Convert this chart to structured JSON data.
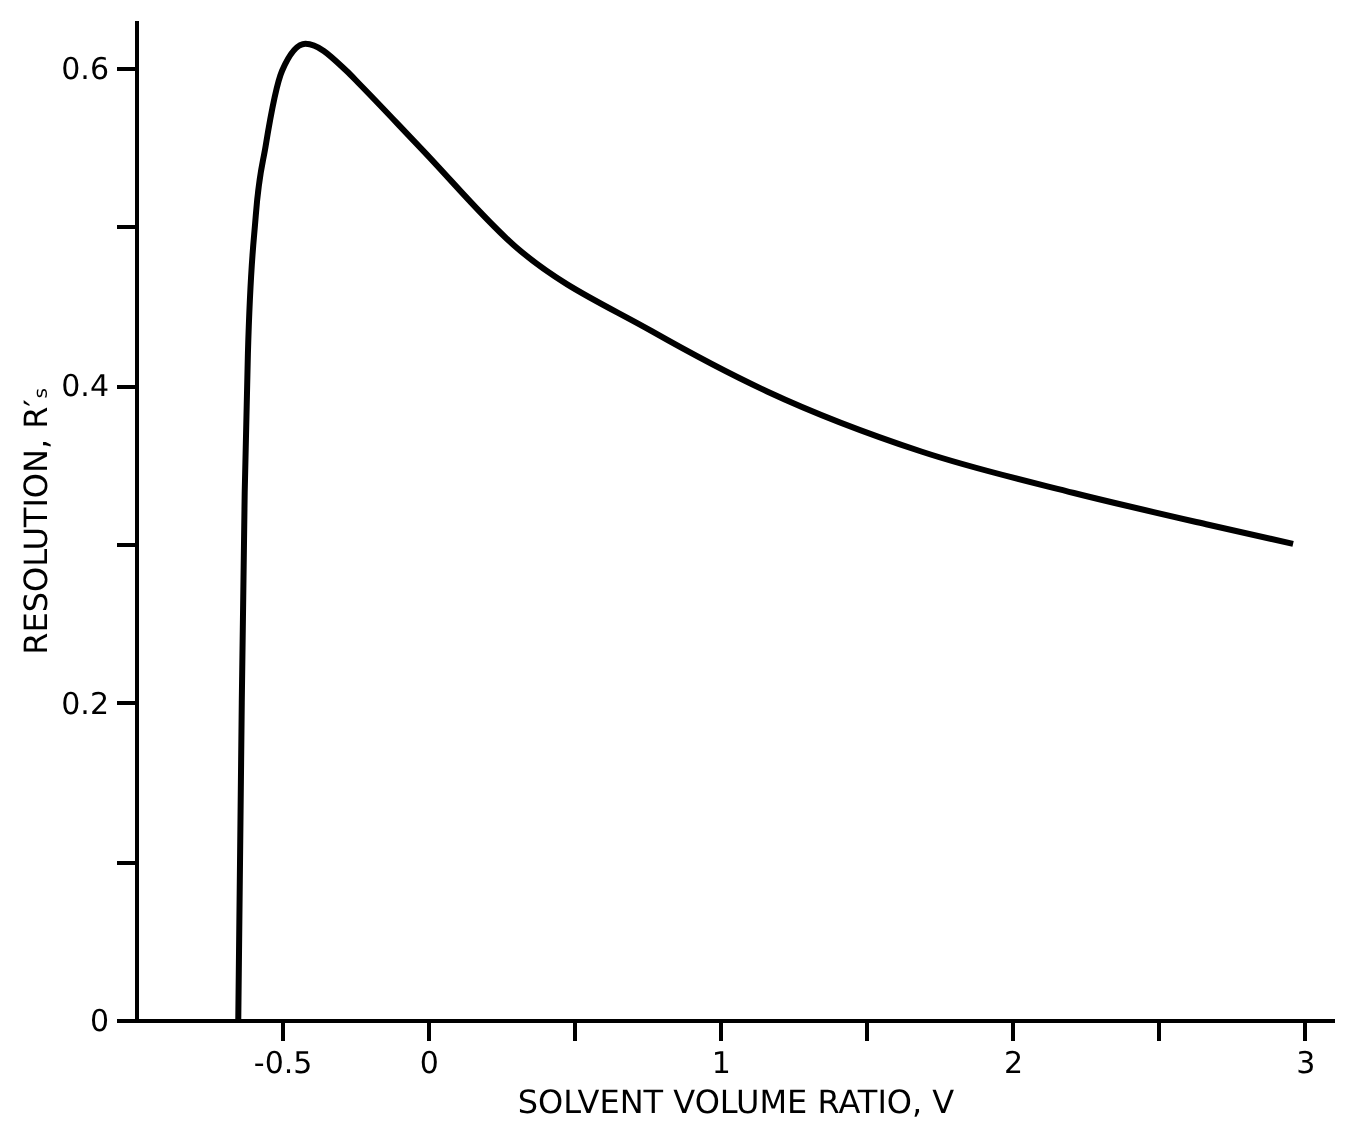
{
  "chart_data": {
    "type": "line",
    "xlabel": "SOLVENT  VOLUME  RATIO,  V",
    "ylabel": "RESOLUTION,  R′ₛ",
    "xlim": [
      -1,
      3.1
    ],
    "ylim": [
      0,
      0.63
    ],
    "xticks": [
      -0.5,
      0,
      {
        "value": 0.5,
        "label": null
      },
      1,
      {
        "value": 1.5,
        "label": null
      },
      2,
      {
        "value": 2.5,
        "label": null
      },
      3
    ],
    "yticks": [
      0,
      {
        "value": 0.1,
        "label": null
      },
      0.2,
      {
        "value": 0.3,
        "label": null
      },
      0.4,
      {
        "value": 0.5,
        "label": null
      },
      0.6
    ],
    "grid": false,
    "marker": "none",
    "line_style": "solid",
    "series": [
      {
        "color": "#000000",
        "x": [
          -0.65,
          -0.638,
          -0.628,
          -0.617,
          -0.59,
          -0.556,
          -0.5,
          -0.42,
          -0.28,
          -0.237,
          -0.024,
          0.3,
          0.765,
          1.16,
          1.69,
          2.21,
          2.67,
          2.96
        ],
        "values": [
          0,
          0.2,
          0.332,
          0.42,
          0.507,
          0.551,
          0.598,
          0.615,
          0.598,
          0.59,
          0.549,
          0.487,
          0.434,
          0.396,
          0.358,
          0.332,
          0.312,
          0.3
        ]
      }
    ]
  }
}
